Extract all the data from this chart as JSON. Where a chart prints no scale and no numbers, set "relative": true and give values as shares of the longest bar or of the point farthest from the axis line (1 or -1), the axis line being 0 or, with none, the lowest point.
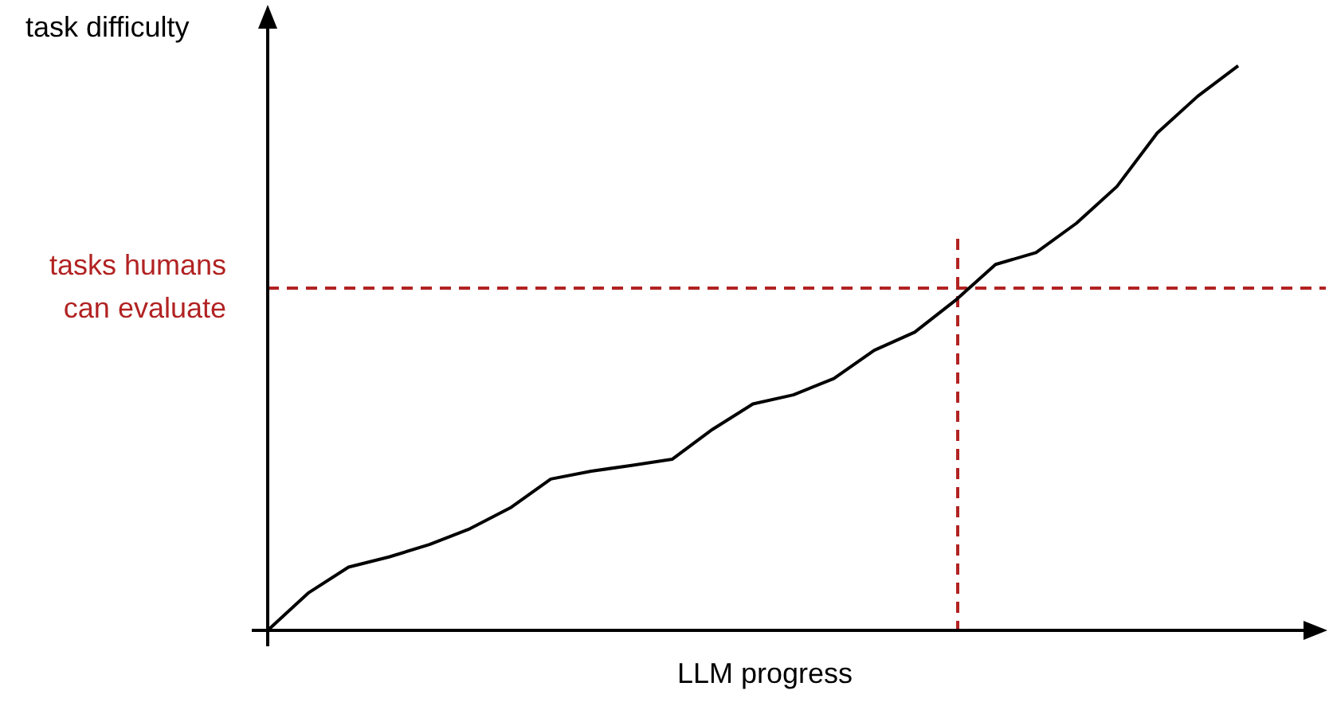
{
  "chart_data": {
    "type": "line",
    "relative": true,
    "xlabel": "LLM progress",
    "ylabel": "task difficulty",
    "tick_labels": false,
    "categories": [
      null,
      null,
      null,
      null,
      null,
      null,
      null,
      null,
      null,
      null,
      null,
      null,
      null,
      null,
      null,
      null,
      null,
      null,
      null,
      null,
      null,
      null,
      null,
      null,
      null
    ],
    "series": [
      {
        "color": "#000000",
        "values": [
          0,
          0.066,
          0.112,
          0.13,
          0.152,
          0.18,
          0.217,
          0.268,
          0.282,
          0.292,
          0.303,
          0.356,
          0.401,
          0.417,
          0.446,
          0.496,
          0.528,
          0.584,
          0.648,
          0.669,
          0.721,
          0.786,
          0.881,
          0.946,
          1
        ]
      }
    ],
    "ref_lines": [
      {
        "axis": "y",
        "value": 0.606,
        "label": "tasks humans can evaluate",
        "color": "#b22222",
        "line_style": "dashed"
      }
    ]
  }
}
